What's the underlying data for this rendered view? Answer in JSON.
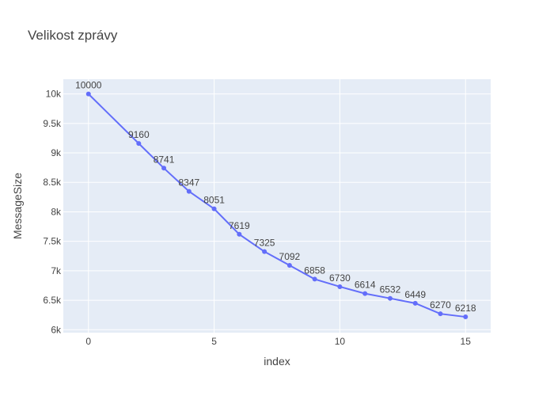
{
  "chart_data": {
    "type": "line",
    "title": "Velikost zprávy",
    "xlabel": "index",
    "ylabel": "MessageSize",
    "xlim": [
      -1,
      16
    ],
    "ylim": [
      5950,
      10250
    ],
    "x_ticks": [
      0,
      5,
      10,
      15
    ],
    "x_tick_labels": [
      "0",
      "5",
      "10",
      "15"
    ],
    "y_ticks": [
      6000,
      6500,
      7000,
      7500,
      8000,
      8500,
      9000,
      9500,
      10000
    ],
    "y_tick_labels": [
      "6k",
      "6.5k",
      "7k",
      "7.5k",
      "8k",
      "8.5k",
      "9k",
      "9.5k",
      "10k"
    ],
    "grid": true,
    "legend": "none",
    "series": [
      {
        "x": [
          0,
          2,
          3,
          4,
          5,
          6,
          7,
          8,
          9,
          10,
          11,
          12,
          13,
          14,
          15
        ],
        "values": [
          10000,
          9160,
          8741,
          8347,
          8051,
          7619,
          7325,
          7092,
          6858,
          6730,
          6614,
          6532,
          6449,
          6270,
          6218
        ],
        "labels": [
          "10000",
          "9160",
          "8741",
          "8347",
          "8051",
          "7619",
          "7325",
          "7092",
          "6858",
          "6730",
          "6614",
          "6532",
          "6449",
          "6270",
          "6218"
        ]
      }
    ],
    "colors": {
      "line": "#636efa",
      "plot_bg": "#e5ecf6",
      "grid": "#ffffff"
    }
  }
}
